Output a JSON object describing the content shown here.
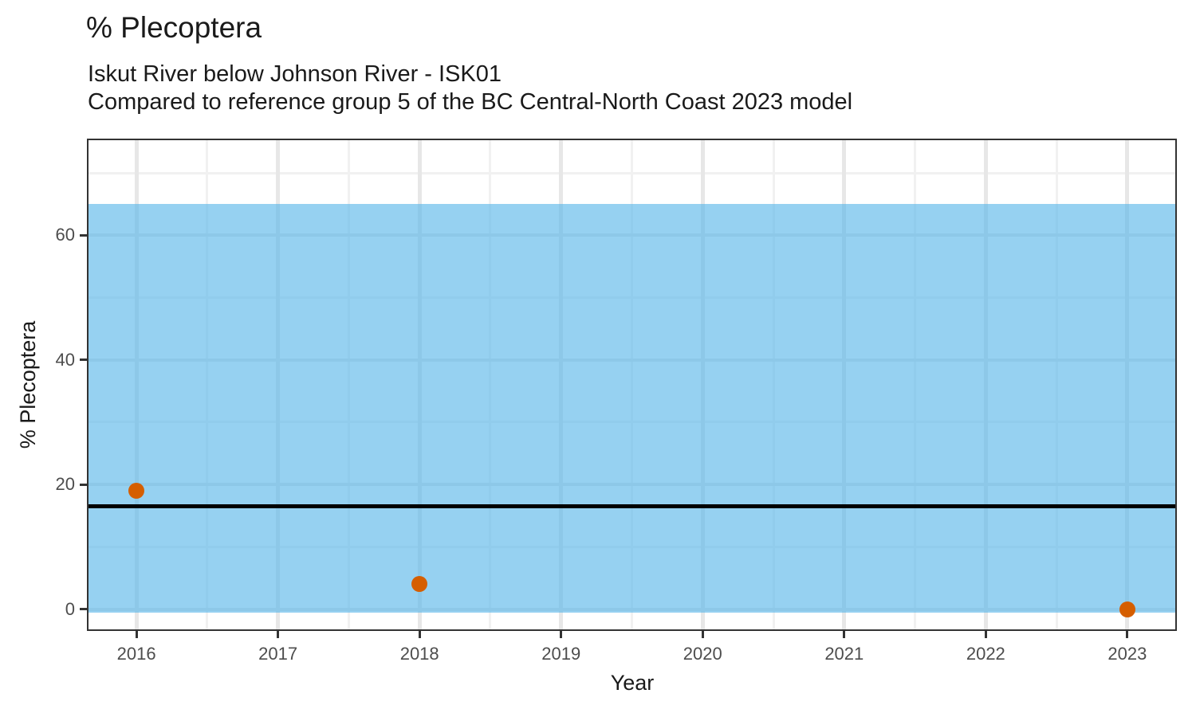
{
  "chart_data": {
    "type": "scatter",
    "title": "% Plecoptera",
    "subtitle_lines": [
      "Iskut River below Johnson River - ISK01",
      "Compared to reference group 5 of the BC Central-North Coast 2023 model"
    ],
    "xlabel": "Year",
    "ylabel": "% Plecoptera",
    "points": [
      {
        "x": 2016,
        "y": 19
      },
      {
        "x": 2018,
        "y": 4
      },
      {
        "x": 2023,
        "y": 0
      }
    ],
    "point_color": "#D55E00",
    "reference_band": {
      "lower": -0.5,
      "upper": 65,
      "fill": "#56B4E9",
      "opacity": 0.62
    },
    "reference_line": {
      "value": 16.5,
      "color": "#000000"
    },
    "xlim": [
      2015.65,
      2023.35
    ],
    "ylim": [
      -3.5,
      75.5
    ],
    "x_major_ticks": [
      2016,
      2017,
      2018,
      2019,
      2020,
      2021,
      2022,
      2023
    ],
    "x_minor_ticks": [
      2016.5,
      2017.5,
      2018.5,
      2019.5,
      2020.5,
      2021.5,
      2022.5
    ],
    "y_major_ticks": [
      0,
      20,
      40,
      60
    ],
    "y_minor_ticks": [
      10,
      30,
      50,
      70
    ],
    "grid": true,
    "legend_position": "none"
  }
}
